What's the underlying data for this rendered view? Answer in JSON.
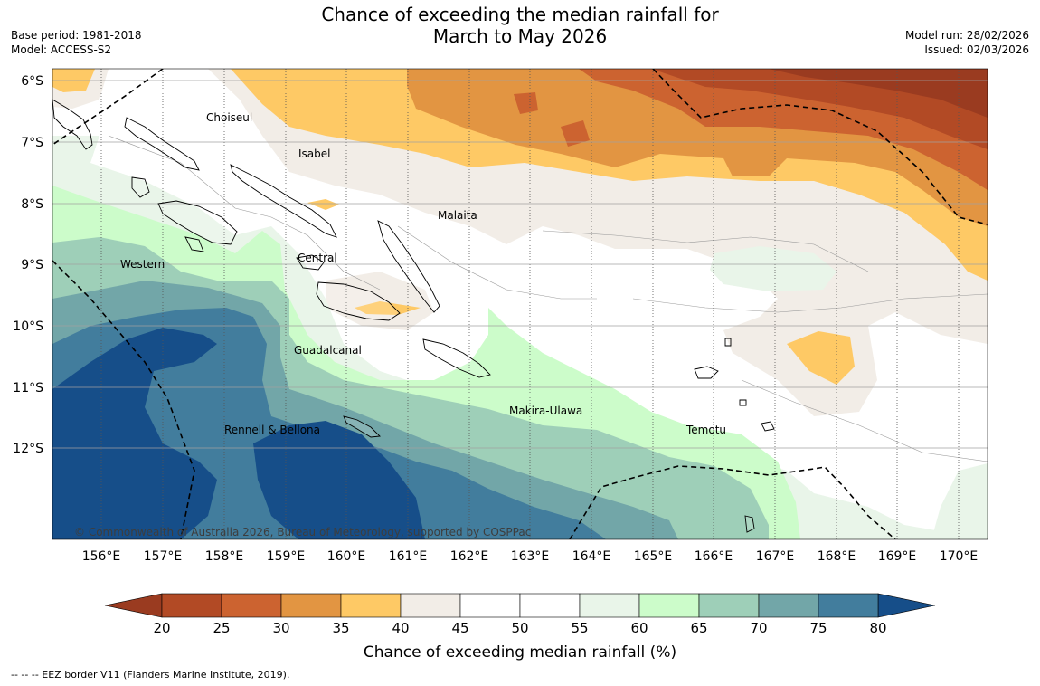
{
  "title": {
    "line1": "Chance of exceeding the median rainfall for",
    "line2": "March to May 2026"
  },
  "meta_left": {
    "base_period": "Base period: 1981-2018",
    "model": "Model: ACCESS-S2"
  },
  "meta_right": {
    "model_run": "Model run: 28/02/2026",
    "issued": "Issued: 02/03/2026"
  },
  "map": {
    "lat_labels": [
      "6°S",
      "7°S",
      "8°S",
      "9°S",
      "10°S",
      "11°S",
      "12°S"
    ],
    "lon_labels": [
      "156°E",
      "157°E",
      "158°E",
      "159°E",
      "160°E",
      "161°E",
      "162°E",
      "163°E",
      "164°E",
      "165°E",
      "166°E",
      "167°E",
      "168°E",
      "169°E",
      "170°E"
    ],
    "region_labels": {
      "choiseul": "Choiseul",
      "isabel": "Isabel",
      "malaita": "Malaita",
      "western": "Western",
      "central": "Central",
      "guadalcanal": "Guadalcanal",
      "makira": "Makira-Ulawa",
      "rennell": "Rennell & Bellona",
      "temotu": "Temotu"
    },
    "copyright": "© Commonwealth of Australia 2026, Bureau of Meteorology, supported by COSPPac"
  },
  "legend": {
    "ticks": [
      "20",
      "25",
      "30",
      "35",
      "40",
      "45",
      "50",
      "55",
      "60",
      "65",
      "70",
      "75",
      "80"
    ],
    "colors": [
      "#b24a25",
      "#cc6330",
      "#e29542",
      "#fec965",
      "#f2ede7",
      "#ffffff",
      "#ffffff",
      "#e9f5e9",
      "#ccfcca",
      "#9ecfb8",
      "#72a6a8",
      "#427d9d"
    ],
    "under_color": "#9a3b20",
    "over_color": "#164e89",
    "title": "Chance of exceeding median rainfall (%)"
  },
  "footnote": "--  --  -- EEZ border V11 (Flanders Marine Institute, 2019)."
}
